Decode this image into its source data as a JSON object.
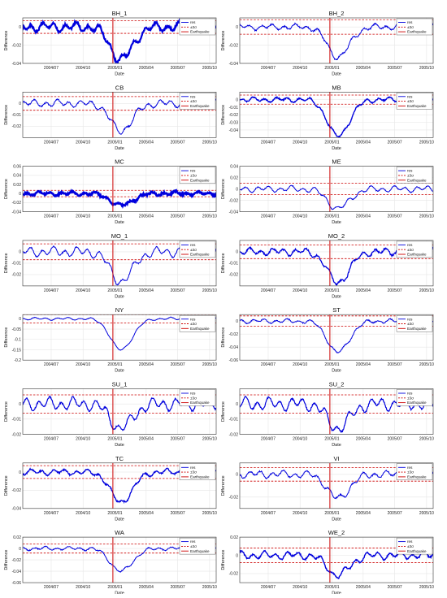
{
  "figure": {
    "xlabel": "Date",
    "ylabel": "Difference",
    "legend": {
      "res": "res",
      "sigma": "±3σ",
      "earthquake": "Earthquake"
    },
    "colors": {
      "res": "#0000dd",
      "sigma": "#cc0000",
      "earthquake": "#cc0000",
      "grid": "#e6e6e6",
      "axis": "#333333"
    }
  },
  "chart_data": [
    {
      "type": "line",
      "title": "BH_1",
      "ylim": [
        -0.04,
        0.01
      ],
      "yticks": [
        -0.04,
        -0.02,
        0
      ],
      "ytick_labels": [
        "-0.04",
        "-0.02",
        "0"
      ],
      "xticks": [
        "2004/07",
        "2004/10",
        "2005/01",
        "2005/04",
        "2005/07",
        "2005/10"
      ],
      "sigma": 0.007,
      "dip_depth": -0.036,
      "wiggle": 0.005,
      "noise": 0.0012,
      "thick": 2.2,
      "seed": 1,
      "earthquake": "2004/12/26"
    },
    {
      "type": "line",
      "title": "BH_2",
      "ylim": [
        -0.04,
        0.01
      ],
      "yticks": [
        -0.04,
        -0.02,
        0
      ],
      "ytick_labels": [
        "-0.04",
        "-0.02",
        "0"
      ],
      "xticks": [
        "2004/07",
        "2004/10",
        "2005/01",
        "2005/04",
        "2005/07",
        "2005/10"
      ],
      "sigma": 0.008,
      "dip_depth": -0.033,
      "wiggle": 0.003,
      "noise": 0.0008,
      "thick": 1.0,
      "seed": 2,
      "earthquake": "2004/12/26"
    },
    {
      "type": "line",
      "title": "CB",
      "ylim": [
        -0.03,
        0.01
      ],
      "yticks": [
        -0.02,
        -0.01,
        0
      ],
      "ytick_labels": [
        "-0.02",
        "-0.01",
        "0"
      ],
      "xticks": [
        "2004/07",
        "2004/10",
        "2005/01",
        "2005/04",
        "2005/07",
        "2005/10"
      ],
      "sigma": 0.006,
      "dip_depth": -0.024,
      "wiggle": 0.003,
      "noise": 0.0006,
      "thick": 1.0,
      "seed": 3,
      "earthquake": "2004/12/26"
    },
    {
      "type": "line",
      "title": "MB",
      "ylim": [
        -0.05,
        0.01
      ],
      "yticks": [
        -0.04,
        -0.03,
        -0.02,
        -0.01,
        0
      ],
      "ytick_labels": [
        "-0.04",
        "-0.03",
        "-0.02",
        "-0.01",
        "0"
      ],
      "xticks": [
        "2004/07",
        "2004/10",
        "2005/01",
        "2005/04",
        "2005/07",
        "2005/10"
      ],
      "sigma": 0.006,
      "dip_depth": -0.048,
      "wiggle": 0.003,
      "noise": 0.0008,
      "thick": 1.4,
      "seed": 4,
      "earthquake": "2004/12/26"
    },
    {
      "type": "line",
      "title": "MC",
      "ylim": [
        -0.04,
        0.06
      ],
      "yticks": [
        -0.04,
        -0.02,
        0,
        0.02,
        0.04,
        0.06
      ],
      "ytick_labels": [
        "-0.04",
        "-0.02",
        "0",
        "0.02",
        "0.04",
        "0.06"
      ],
      "xticks": [
        "2004/07",
        "2004/10",
        "2005/01",
        "2005/04",
        "2005/07",
        "2005/10"
      ],
      "sigma": 0.007,
      "dip_depth": -0.026,
      "wiggle": 0.004,
      "noise": 0.0018,
      "thick": 2.6,
      "seed": 5,
      "earthquake": "2004/12/26"
    },
    {
      "type": "line",
      "title": "ME",
      "ylim": [
        -0.04,
        0.04
      ],
      "yticks": [
        -0.04,
        -0.02,
        0,
        0.02,
        0.04
      ],
      "ytick_labels": [
        "-0.04",
        "-0.02",
        "0",
        "0.02",
        "0.04"
      ],
      "xticks": [
        "2004/07",
        "2004/10",
        "2005/01",
        "2005/04",
        "2005/07",
        "2005/10"
      ],
      "sigma": 0.01,
      "dip_depth": -0.034,
      "wiggle": 0.005,
      "noise": 0.0008,
      "thick": 1.0,
      "seed": 6,
      "earthquake": "2004/12/26"
    },
    {
      "type": "line",
      "title": "MO_1",
      "ylim": [
        -0.03,
        0.01
      ],
      "yticks": [
        -0.02,
        -0.01,
        0
      ],
      "ytick_labels": [
        "-0.02",
        "-0.01",
        "0"
      ],
      "xticks": [
        "2004/07",
        "2004/10",
        "2005/01",
        "2005/04",
        "2005/07",
        "2005/10"
      ],
      "sigma": 0.007,
      "dip_depth": -0.026,
      "wiggle": 0.004,
      "noise": 0.0006,
      "thick": 1.0,
      "seed": 7,
      "earthquake": "2004/12/26"
    },
    {
      "type": "line",
      "title": "MO_2",
      "ylim": [
        -0.03,
        0.01
      ],
      "yticks": [
        -0.02,
        -0.01,
        0
      ],
      "ytick_labels": [
        "-0.02",
        "-0.01",
        "0"
      ],
      "xticks": [
        "2004/07",
        "2004/10",
        "2005/01",
        "2005/04",
        "2005/07",
        "2005/10"
      ],
      "sigma": 0.006,
      "dip_depth": -0.027,
      "wiggle": 0.003,
      "noise": 0.0008,
      "thick": 1.3,
      "seed": 8,
      "earthquake": "2004/12/26"
    },
    {
      "type": "line",
      "title": "NY",
      "ylim": [
        -0.2,
        0.02
      ],
      "yticks": [
        -0.2,
        -0.15,
        -0.1,
        -0.05,
        0
      ],
      "ytick_labels": [
        "-0.2",
        "-0.15",
        "-0.1",
        "-0.05",
        "0"
      ],
      "xticks": [
        "2004/07",
        "2004/10",
        "2005/01",
        "2005/04",
        "2005/07",
        "2005/10"
      ],
      "sigma": 0.02,
      "dip_depth": -0.15,
      "wiggle": 0.006,
      "noise": 0.001,
      "thick": 1.0,
      "seed": 9,
      "earthquake": "2004/12/26"
    },
    {
      "type": "line",
      "title": "ST",
      "ylim": [
        -0.06,
        0.01
      ],
      "yticks": [
        -0.06,
        -0.04,
        -0.02,
        0
      ],
      "ytick_labels": [
        "-0.06",
        "-0.04",
        "-0.02",
        "0"
      ],
      "xticks": [
        "2004/07",
        "2004/10",
        "2005/01",
        "2005/04",
        "2005/07",
        "2005/10"
      ],
      "sigma": 0.008,
      "dip_depth": -0.048,
      "wiggle": 0.003,
      "noise": 0.0008,
      "thick": 1.0,
      "seed": 10,
      "earthquake": "2004/12/26"
    },
    {
      "type": "line",
      "title": "SU_1",
      "ylim": [
        -0.02,
        0.01
      ],
      "yticks": [
        -0.02,
        -0.01,
        0
      ],
      "ytick_labels": [
        "-0.02",
        "-0.01",
        "0"
      ],
      "xticks": [
        "2004/07",
        "2004/10",
        "2005/01",
        "2005/04",
        "2005/07",
        "2005/10"
      ],
      "sigma": 0.006,
      "dip_depth": -0.016,
      "wiggle": 0.004,
      "noise": 0.0005,
      "thick": 1.2,
      "seed": 11,
      "earthquake": "2004/12/26"
    },
    {
      "type": "line",
      "title": "SU_2",
      "ylim": [
        -0.02,
        0.01
      ],
      "yticks": [
        -0.02,
        -0.01,
        0
      ],
      "ytick_labels": [
        "-0.02",
        "-0.01",
        "0"
      ],
      "xticks": [
        "2004/07",
        "2004/10",
        "2005/01",
        "2005/04",
        "2005/07",
        "2005/10"
      ],
      "sigma": 0.006,
      "dip_depth": -0.016,
      "wiggle": 0.004,
      "noise": 0.0005,
      "thick": 1.2,
      "seed": 12,
      "earthquake": "2004/12/26"
    },
    {
      "type": "line",
      "title": "TC",
      "ylim": [
        -0.04,
        0.01
      ],
      "yticks": [
        -0.04,
        -0.02,
        0
      ],
      "ytick_labels": [
        "-0.04",
        "-0.02",
        "0"
      ],
      "xticks": [
        "2004/07",
        "2004/10",
        "2005/01",
        "2005/04",
        "2005/07",
        "2005/10"
      ],
      "sigma": 0.007,
      "dip_depth": -0.033,
      "wiggle": 0.003,
      "noise": 0.0008,
      "thick": 1.3,
      "seed": 13,
      "earthquake": "2004/12/26"
    },
    {
      "type": "line",
      "title": "VI",
      "ylim": [
        -0.03,
        0.01
      ],
      "yticks": [
        -0.02,
        0
      ],
      "ytick_labels": [
        "-0.02",
        "0"
      ],
      "xticks": [
        "2004/07",
        "2004/10",
        "2005/01",
        "2005/04",
        "2005/07",
        "2005/10"
      ],
      "sigma": 0.006,
      "dip_depth": -0.021,
      "wiggle": 0.003,
      "noise": 0.0006,
      "thick": 1.0,
      "seed": 14,
      "earthquake": "2004/12/26"
    },
    {
      "type": "line",
      "title": "WA",
      "ylim": [
        -0.06,
        0.02
      ],
      "yticks": [
        -0.06,
        -0.04,
        -0.02,
        0,
        0.02
      ],
      "ytick_labels": [
        "-0.06",
        "-0.04",
        "-0.02",
        "0",
        "0.02"
      ],
      "xticks": [
        "2004/07",
        "2004/10",
        "2005/01",
        "2005/04",
        "2005/07",
        "2005/10"
      ],
      "sigma": 0.008,
      "dip_depth": -0.04,
      "wiggle": 0.003,
      "noise": 0.0008,
      "thick": 1.0,
      "seed": 15,
      "earthquake": "2004/12/26"
    },
    {
      "type": "line",
      "title": "WE_2",
      "ylim": [
        -0.03,
        0.02
      ],
      "yticks": [
        -0.02,
        0,
        0.02
      ],
      "ytick_labels": [
        "-0.02",
        "0",
        "0.02"
      ],
      "xticks": [
        "2004/07",
        "2004/10",
        "2005/01",
        "2005/04",
        "2005/07",
        "2005/10"
      ],
      "sigma": 0.008,
      "dip_depth": -0.022,
      "wiggle": 0.004,
      "noise": 0.0008,
      "thick": 1.4,
      "seed": 16,
      "earthquake": "2004/12/26"
    }
  ]
}
